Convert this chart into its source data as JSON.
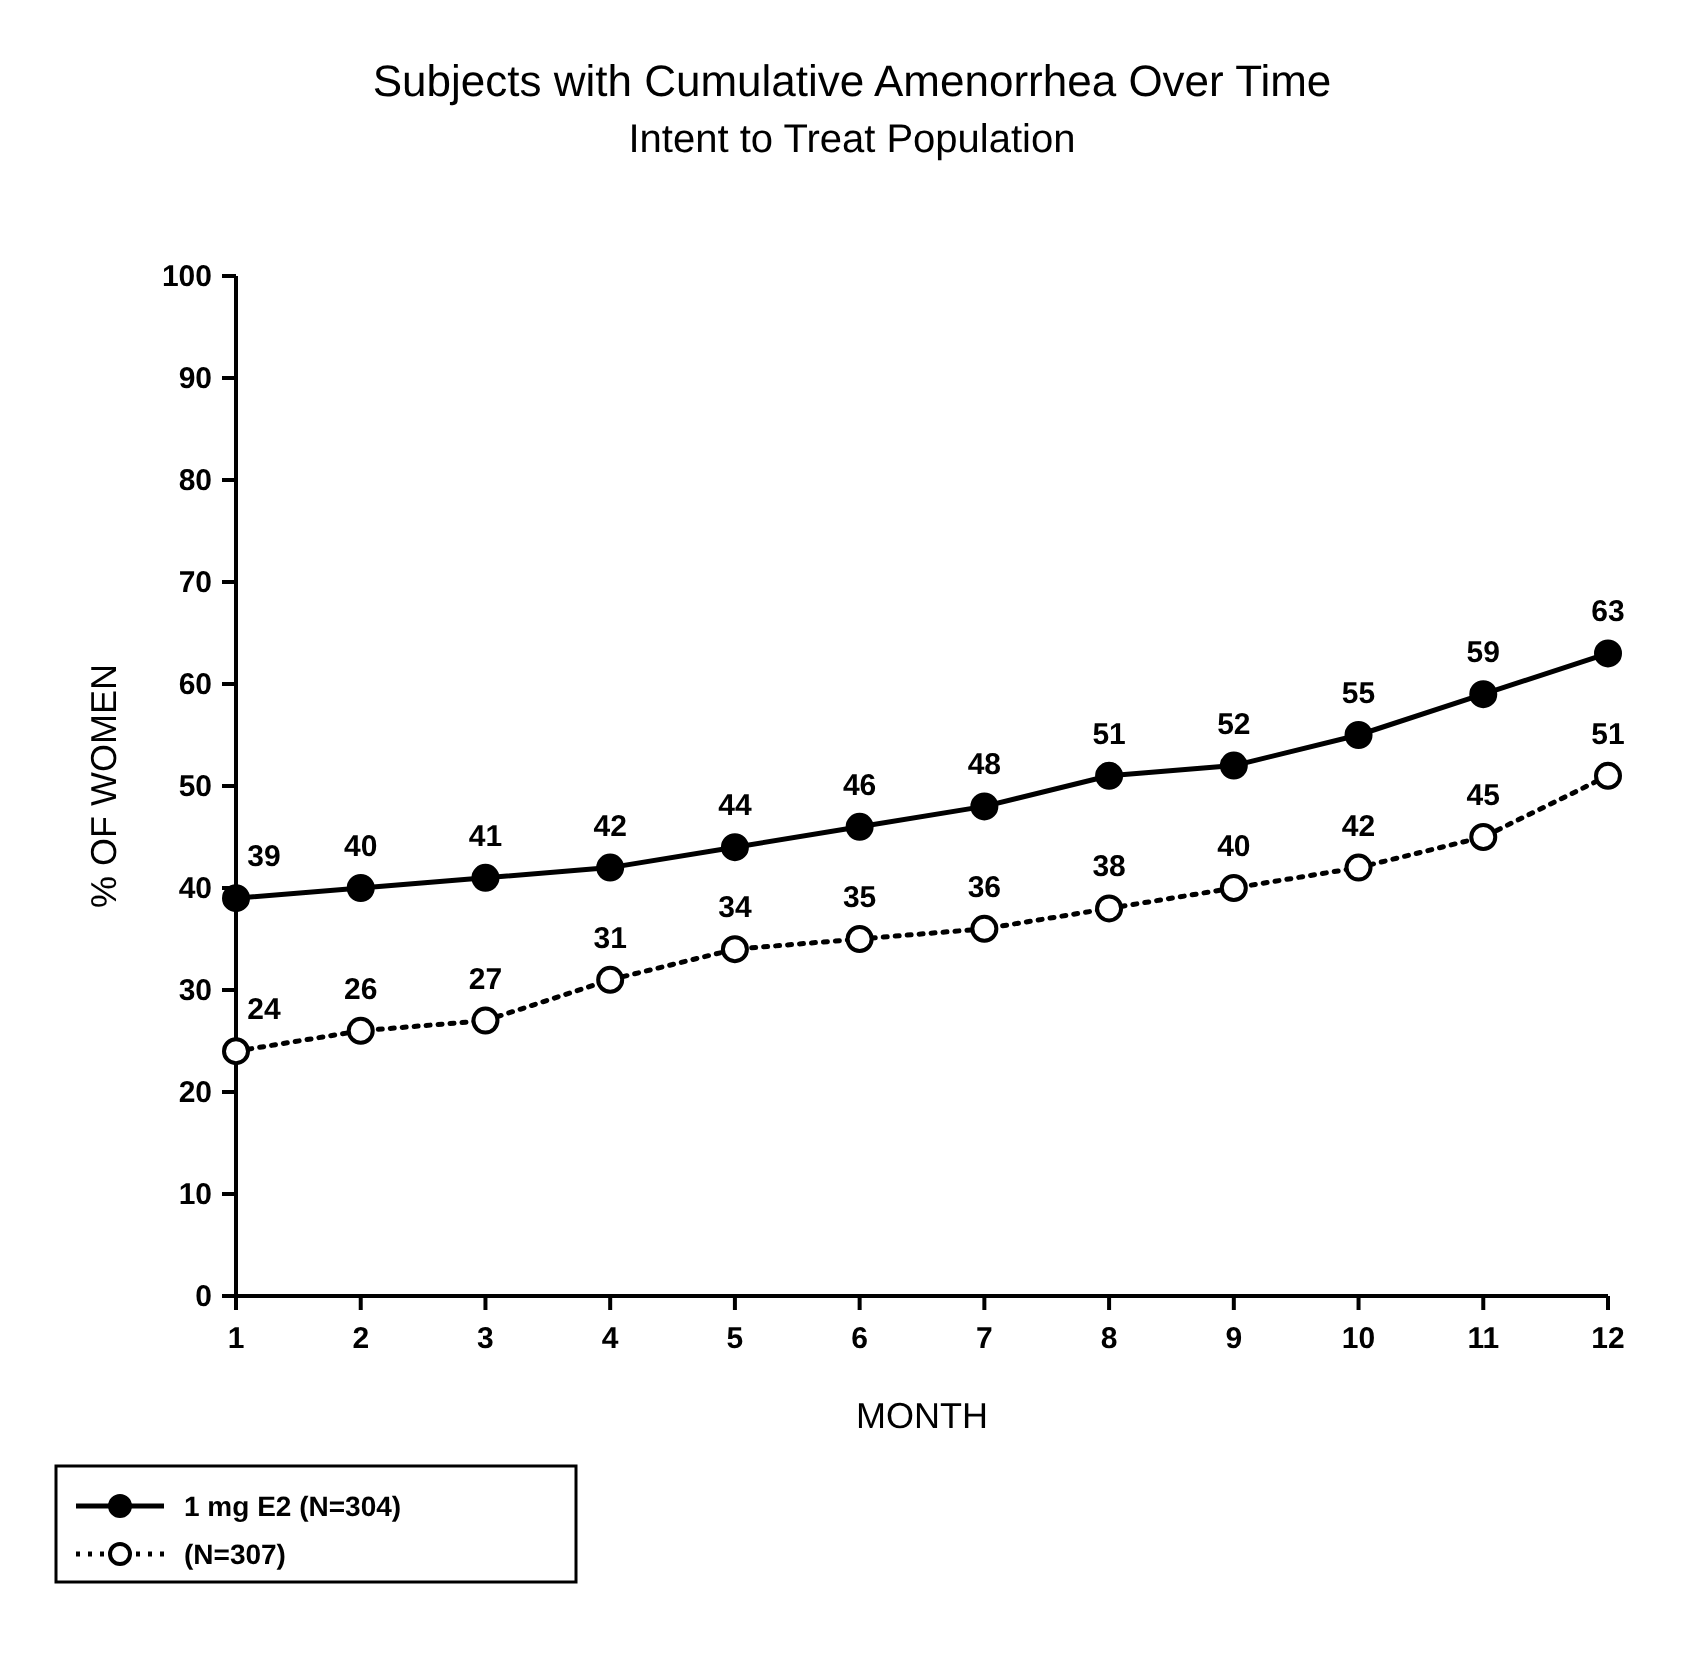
{
  "chart_data": {
    "type": "line",
    "title": "Subjects with Cumulative Amenorrhea Over Time",
    "subtitle": "Intent to Treat Population",
    "xlabel": "MONTH",
    "ylabel": "% OF WOMEN",
    "x": [
      1,
      2,
      3,
      4,
      5,
      6,
      7,
      8,
      9,
      10,
      11,
      12
    ],
    "xlim": [
      1,
      12
    ],
    "xticks": [
      1,
      2,
      3,
      4,
      5,
      6,
      7,
      8,
      9,
      10,
      11,
      12
    ],
    "ylim": [
      0,
      100
    ],
    "yticks": [
      0,
      10,
      20,
      30,
      40,
      50,
      60,
      70,
      80,
      90,
      100
    ],
    "series": [
      {
        "name": "1 mg E2 (N=304)",
        "color": "#000000",
        "line_style": "solid",
        "marker": "circle",
        "values": [
          39,
          40,
          41,
          42,
          44,
          46,
          48,
          51,
          52,
          55,
          59,
          63
        ]
      },
      {
        "name": "(N=307)",
        "color": "#000000",
        "line_style": "dotted",
        "marker": "circle",
        "values": [
          24,
          26,
          27,
          31,
          34,
          35,
          36,
          38,
          40,
          42,
          45,
          51
        ]
      }
    ],
    "data_labels": true,
    "grid": false,
    "legend": "bottom left"
  }
}
